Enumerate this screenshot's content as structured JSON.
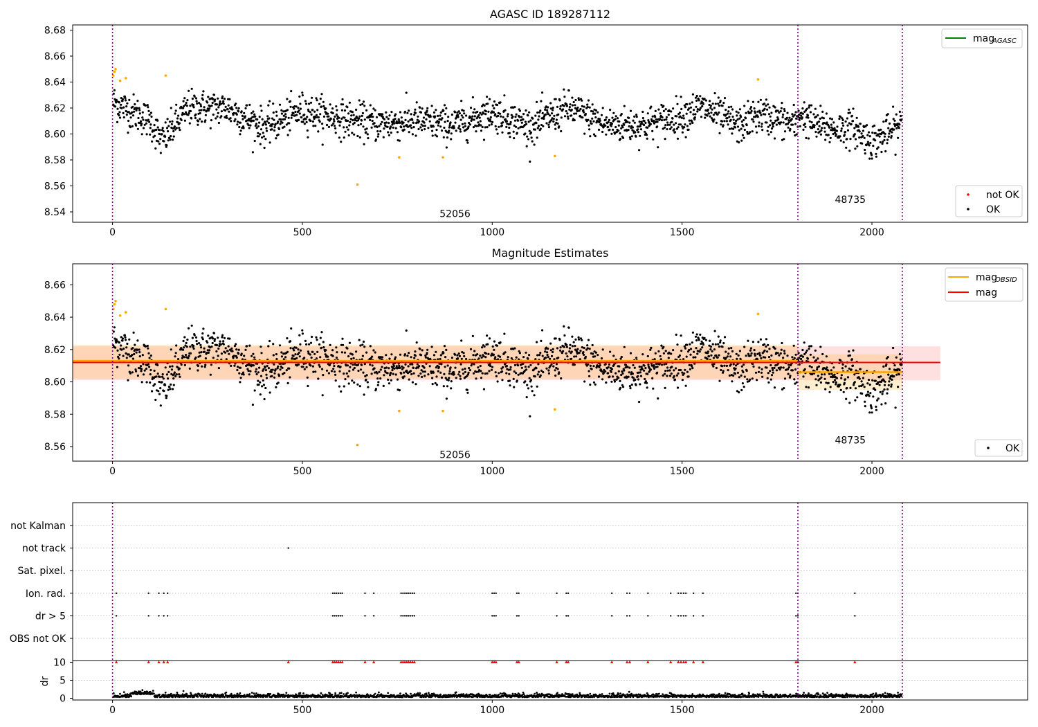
{
  "figure": {
    "title_top": "AGASC ID 189287112",
    "title_mid": "Magnitude Estimates"
  },
  "chart_data": [
    {
      "type": "scatter",
      "title": "AGASC ID 189287112",
      "xlim": [
        -105,
        2410
      ],
      "ylim": [
        8.532,
        8.684
      ],
      "xticks": [
        0,
        500,
        1000,
        1500,
        2000
      ],
      "yticks": [
        8.54,
        8.56,
        8.58,
        8.6,
        8.62,
        8.64,
        8.66,
        8.68
      ],
      "obs_boundaries": [
        0,
        1805,
        2080
      ],
      "obs_labels": [
        {
          "text": "52056",
          "x": 902,
          "y": 8.536
        },
        {
          "text": "48735",
          "x": 1943,
          "y": 8.547
        }
      ],
      "legend_upper_right": [
        {
          "label": "mag",
          "sub": "AGASC",
          "color": "#008000"
        }
      ],
      "legend_lower_right": [
        {
          "label": "not OK",
          "color": "#ff0000"
        },
        {
          "label": "OK",
          "color": "#000000"
        }
      ],
      "series": [
        {
          "name": "OK",
          "color": "#000000",
          "segments": [
            {
              "x": [
                0,
                100,
                130,
                200,
                300,
                400,
                500,
                600,
                700,
                800,
                900,
                1000,
                1100,
                1200,
                1300,
                1400,
                1500,
                1550,
                1650,
                1700,
                1805
              ],
              "y": [
                8.625,
                8.61,
                8.594,
                8.62,
                8.62,
                8.605,
                8.618,
                8.612,
                8.608,
                8.61,
                8.607,
                8.617,
                8.606,
                8.62,
                8.607,
                8.607,
                8.614,
                8.621,
                8.606,
                8.615,
                8.607
              ]
            },
            {
              "x": [
                1805,
                1850,
                1900,
                1950,
                2000,
                2040,
                2080
              ],
              "y": [
                8.617,
                8.607,
                8.604,
                8.605,
                8.594,
                8.6,
                8.608
              ]
            }
          ]
        },
        {
          "name": "orange",
          "color": "#ffa500",
          "points": [
            [
              2,
              8.645
            ],
            [
              5,
              8.648
            ],
            [
              8,
              8.65
            ],
            [
              20,
              8.641
            ],
            [
              35,
              8.643
            ],
            [
              140,
              8.645
            ],
            [
              645,
              8.561
            ],
            [
              755,
              8.582
            ],
            [
              870,
              8.582
            ],
            [
              1165,
              8.583
            ],
            [
              1700,
              8.642
            ]
          ]
        }
      ]
    },
    {
      "type": "scatter",
      "title": "Magnitude Estimates",
      "xlim": [
        -105,
        2410
      ],
      "ylim": [
        8.551,
        8.673
      ],
      "xticks": [
        0,
        500,
        1000,
        1500,
        2000
      ],
      "yticks": [
        8.56,
        8.58,
        8.6,
        8.62,
        8.64,
        8.66
      ],
      "obs_boundaries": [
        0,
        1805,
        2080
      ],
      "obs_labels": [
        {
          "text": "52056",
          "x": 902,
          "y": 8.553
        },
        {
          "text": "48735",
          "x": 1943,
          "y": 8.562
        }
      ],
      "legend_upper_right": [
        {
          "label": "mag",
          "sub": "OBSID",
          "color": "#ffa500"
        },
        {
          "label": "mag",
          "sub": "",
          "color": "#ff0000"
        }
      ],
      "legend_lower_right": [
        {
          "label": "OK",
          "color": "#000000"
        }
      ],
      "mag_line": {
        "value": 8.612,
        "band": [
          8.601,
          8.622
        ],
        "x_range": [
          -105,
          2180
        ]
      },
      "obsid_mags": [
        {
          "x_range": [
            -105,
            1805
          ],
          "value": 8.613,
          "band": [
            8.602,
            8.623
          ]
        },
        {
          "x_range": [
            1805,
            2080
          ],
          "value": 8.606,
          "band": [
            8.595,
            8.617
          ]
        }
      ]
    },
    {
      "type": "scatter",
      "title": "",
      "xlim": [
        -105,
        2410
      ],
      "xticks": [
        0,
        500,
        1000,
        1500,
        2000
      ],
      "category_rows": [
        "not Kalman",
        "not track",
        "Sat. pixel.",
        "Ion. rad.",
        "dr > 5",
        "OBS not OK"
      ],
      "dr_ylabel": "dr",
      "dr_ticks": [
        0,
        5,
        10
      ],
      "flag_x": {
        "not track": [
          463
        ],
        "Ion. rad.": [
          10,
          95,
          122,
          135,
          145,
          580,
          585,
          590,
          595,
          600,
          605,
          665,
          688,
          760,
          765,
          770,
          775,
          780,
          785,
          790,
          795,
          1000,
          1005,
          1010,
          1065,
          1070,
          1170,
          1195,
          1200,
          1315,
          1355,
          1362,
          1410,
          1470,
          1490,
          1497,
          1504,
          1510,
          1530,
          1555,
          1800,
          1805,
          1955
        ],
        "dr > 5": [
          10,
          95,
          122,
          135,
          145,
          580,
          585,
          590,
          595,
          600,
          605,
          665,
          688,
          760,
          765,
          770,
          775,
          780,
          785,
          790,
          795,
          1000,
          1005,
          1010,
          1065,
          1070,
          1170,
          1195,
          1200,
          1315,
          1355,
          1362,
          1410,
          1470,
          1490,
          1497,
          1504,
          1510,
          1530,
          1555,
          1800,
          1805,
          1955
        ]
      },
      "dr_above_x": [
        10,
        95,
        122,
        135,
        145,
        463,
        580,
        585,
        590,
        595,
        600,
        605,
        665,
        688,
        760,
        765,
        770,
        775,
        780,
        785,
        790,
        795,
        1000,
        1005,
        1010,
        1065,
        1070,
        1170,
        1195,
        1200,
        1315,
        1355,
        1362,
        1410,
        1470,
        1490,
        1497,
        1504,
        1510,
        1530,
        1555,
        1800,
        1805,
        1955
      ]
    }
  ]
}
